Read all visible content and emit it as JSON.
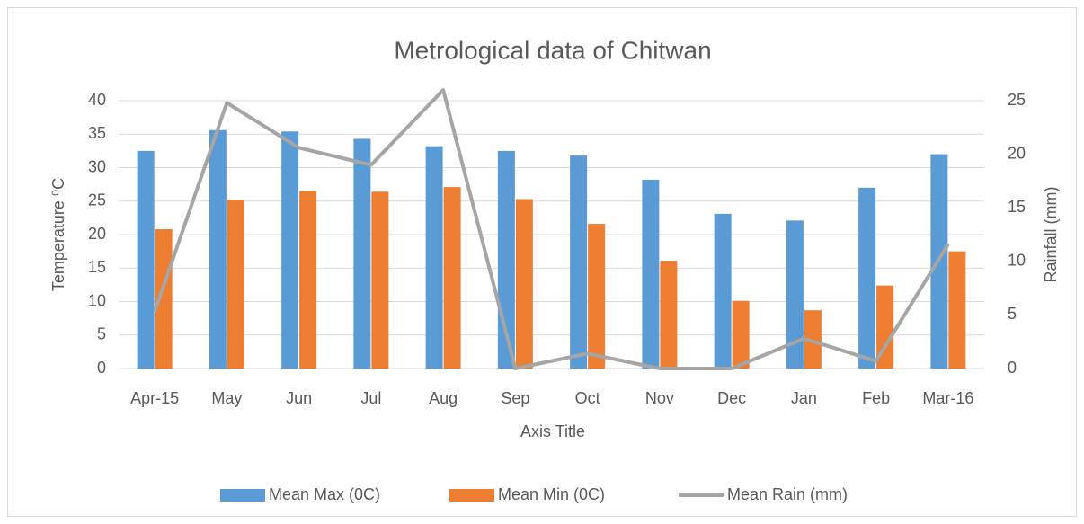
{
  "chart_data": {
    "type": "bar",
    "title": "Metrological data of Chitwan",
    "categories": [
      "Apr-15",
      "May",
      "Jun",
      "Jul",
      "Aug",
      "Sep",
      "Oct",
      "Nov",
      "Dec",
      "Jan",
      "Feb",
      "Mar-16"
    ],
    "series": [
      {
        "name": "Mean Max (0C)",
        "type": "bar",
        "color": "#5b9bd5",
        "values": [
          32.5,
          35.6,
          35.4,
          34.3,
          33.2,
          32.5,
          31.8,
          28.2,
          23.1,
          22.1,
          27.0,
          32.0
        ]
      },
      {
        "name": "Mean Min (0C)",
        "type": "bar",
        "color": "#ed7d31",
        "values": [
          20.8,
          25.2,
          26.5,
          26.4,
          27.1,
          25.3,
          21.6,
          16.1,
          10.1,
          8.7,
          12.4,
          17.5
        ]
      },
      {
        "name": "Mean Rain (mm)",
        "type": "line",
        "axis": "y2",
        "color": "#a5a5a5",
        "values": [
          5.3,
          24.8,
          20.6,
          19.0,
          26.0,
          0,
          1.4,
          0,
          0,
          2.8,
          0.7,
          11.6
        ]
      }
    ],
    "x_label": "Axis Title",
    "y_label": "Temperature ⁰C",
    "y2_label": "Rainfall (mm)",
    "ylim": [
      0,
      40
    ],
    "yticks": [
      0,
      5,
      10,
      15,
      20,
      25,
      30,
      35,
      40
    ],
    "y2lim": [
      0,
      25
    ],
    "y2ticks": [
      0,
      5,
      10,
      15,
      20,
      25
    ],
    "grid": true,
    "legend": "bottom"
  }
}
